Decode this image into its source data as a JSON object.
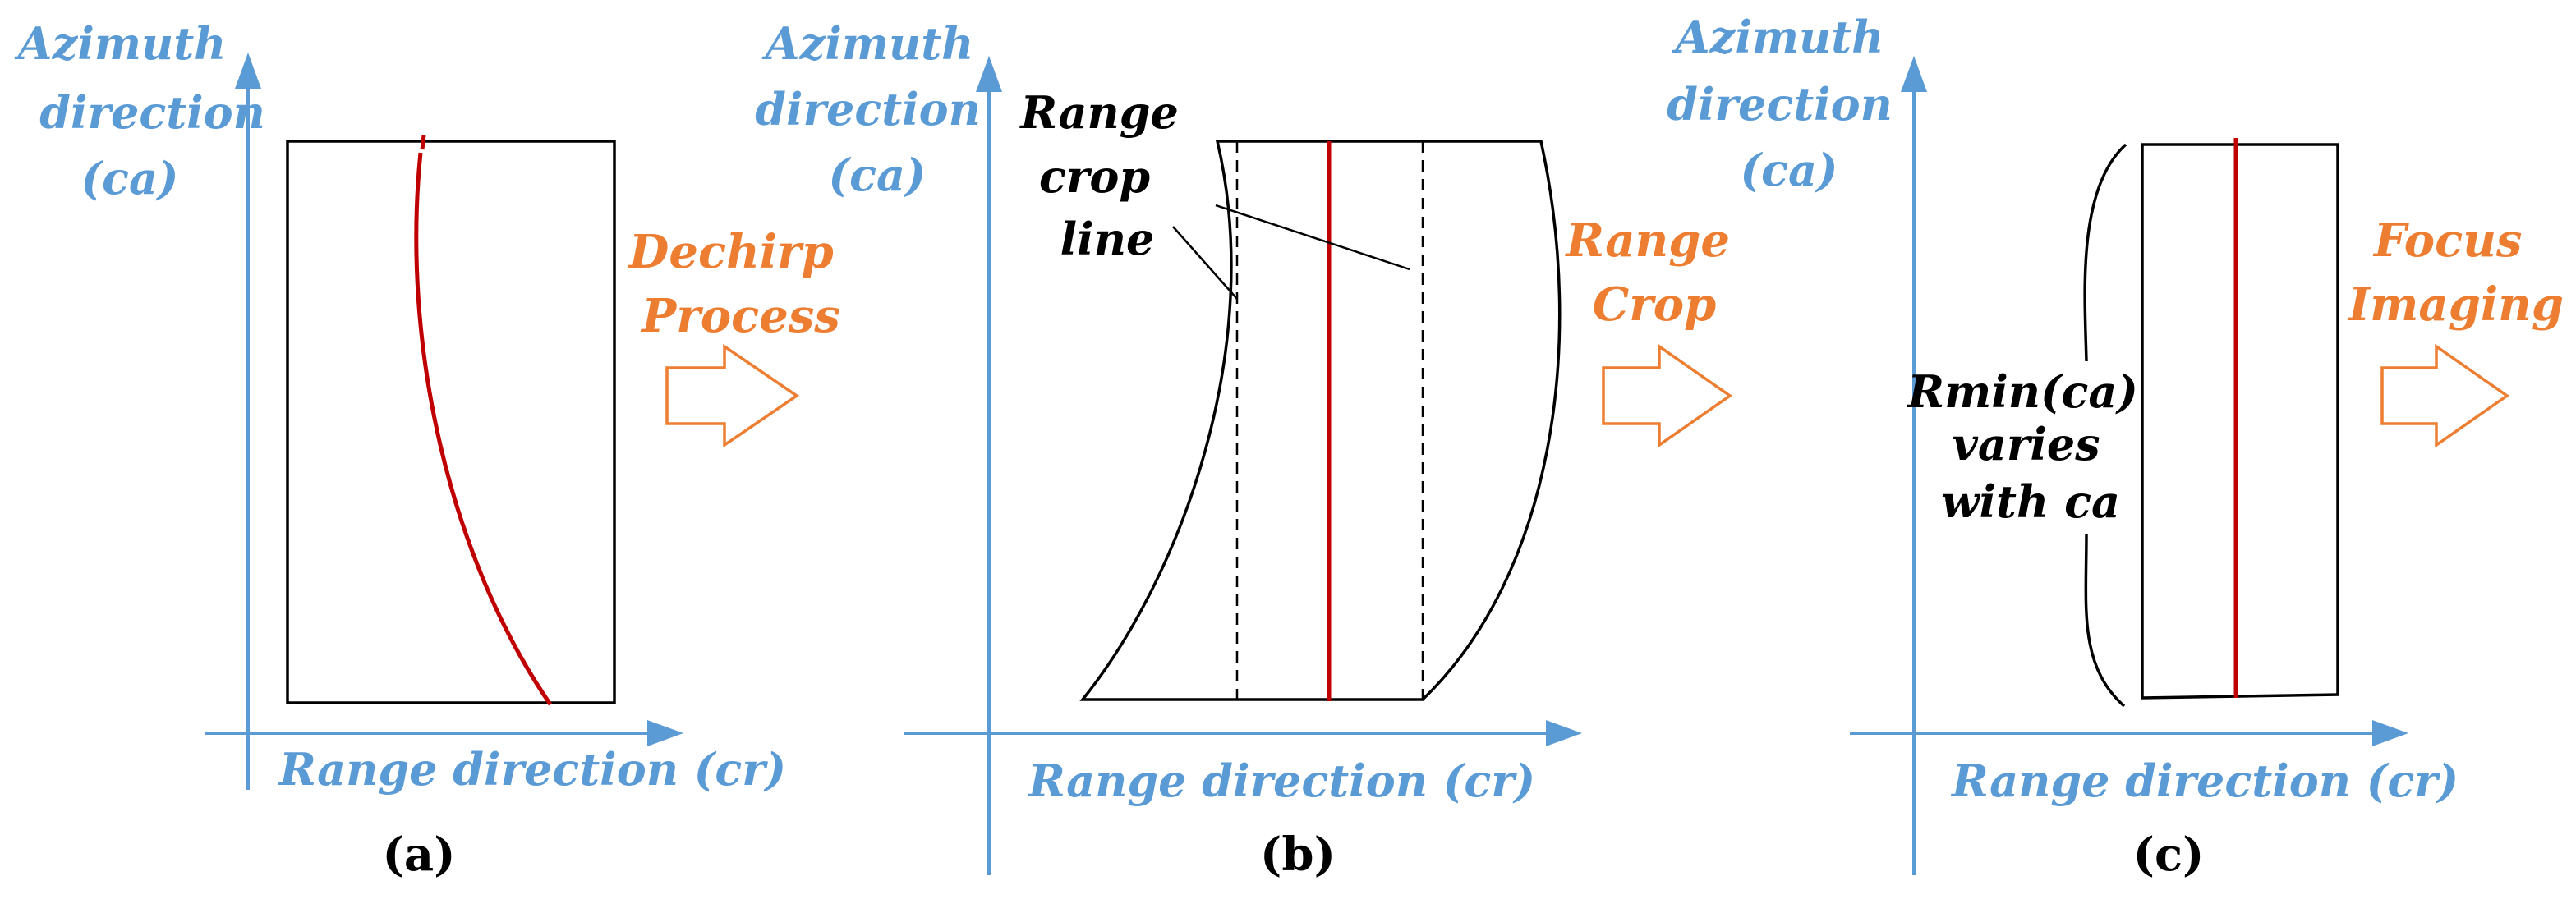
{
  "colors": {
    "axis": "#5b9bd5",
    "step": "#ed7d31",
    "trajectory": "#c00000",
    "outline": "#000000"
  },
  "panel_a": {
    "azimuth_label": [
      "Azimuth",
      "direction",
      "(ca)"
    ],
    "range_label": "Range direction (cr)",
    "caption": "(a)"
  },
  "step_1": {
    "label": [
      "Dechirp",
      "Process"
    ],
    "icon": "right-arrow-icon"
  },
  "panel_b": {
    "azimuth_label": [
      "Azimuth",
      "direction",
      "(ca)"
    ],
    "range_label": "Range direction (cr)",
    "annotation": [
      "Range",
      "crop",
      "line"
    ],
    "caption": "(b)"
  },
  "step_2": {
    "label": [
      "Range",
      "Crop"
    ],
    "icon": "right-arrow-icon"
  },
  "panel_c": {
    "azimuth_label": [
      "Azimuth",
      "direction",
      "(ca)"
    ],
    "range_label": "Range direction (cr)",
    "annotation": [
      "Rmin(ca)",
      "varies",
      "with ca"
    ],
    "caption": "(c)"
  },
  "step_3": {
    "label": [
      "Focus",
      "Imaging"
    ],
    "icon": "right-arrow-icon"
  }
}
